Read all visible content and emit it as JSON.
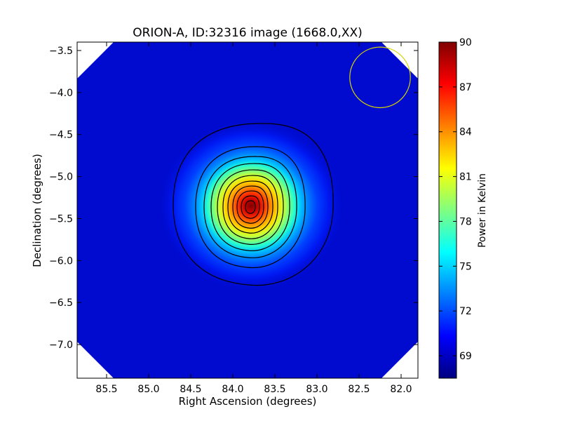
{
  "chart_data": {
    "type": "heatmap",
    "title": "ORION-A, ID:32316 image (1668.0,XX)",
    "xlabel": "Right Ascension (degrees)",
    "ylabel": "Declination (degrees)",
    "xlim": [
      85.85,
      81.8
    ],
    "ylim": [
      -7.4,
      -3.4
    ],
    "x_reversed": true,
    "x_ticks": [
      85.5,
      85.0,
      84.5,
      84.0,
      83.5,
      83.0,
      82.5,
      82.0
    ],
    "x_tick_labels": [
      "85.5",
      "85.0",
      "84.5",
      "84.0",
      "83.5",
      "83.0",
      "82.5",
      "82.0"
    ],
    "y_ticks": [
      -3.5,
      -4.0,
      -4.5,
      -5.0,
      -5.5,
      -6.0,
      -6.5,
      -7.0
    ],
    "y_tick_labels": [
      "−3.5",
      "−4.0",
      "−4.5",
      "−5.0",
      "−5.5",
      "−6.0",
      "−6.5",
      "−7.0"
    ],
    "colorbar": {
      "label": "Power in Kelvin",
      "range": [
        67.5,
        90
      ],
      "ticks": [
        69,
        72,
        75,
        78,
        81,
        84,
        87,
        90
      ],
      "tick_labels": [
        "69",
        "72",
        "75",
        "78",
        "81",
        "84",
        "87",
        "90"
      ],
      "colormap": "jet"
    },
    "source": {
      "ra": 83.85,
      "dec": -5.38,
      "peak": 90,
      "background": 68.4
    },
    "contour_levels": [
      68.9,
      70.8,
      72.6,
      74.4,
      76.2,
      78.0,
      79.8,
      81.6,
      83.4,
      85.2,
      87.0
    ],
    "beam": {
      "ra": 82.25,
      "dec": -3.82,
      "radius_deg": 0.36,
      "color": "#d4d400"
    },
    "image_corner_clip": true,
    "grid": false
  }
}
